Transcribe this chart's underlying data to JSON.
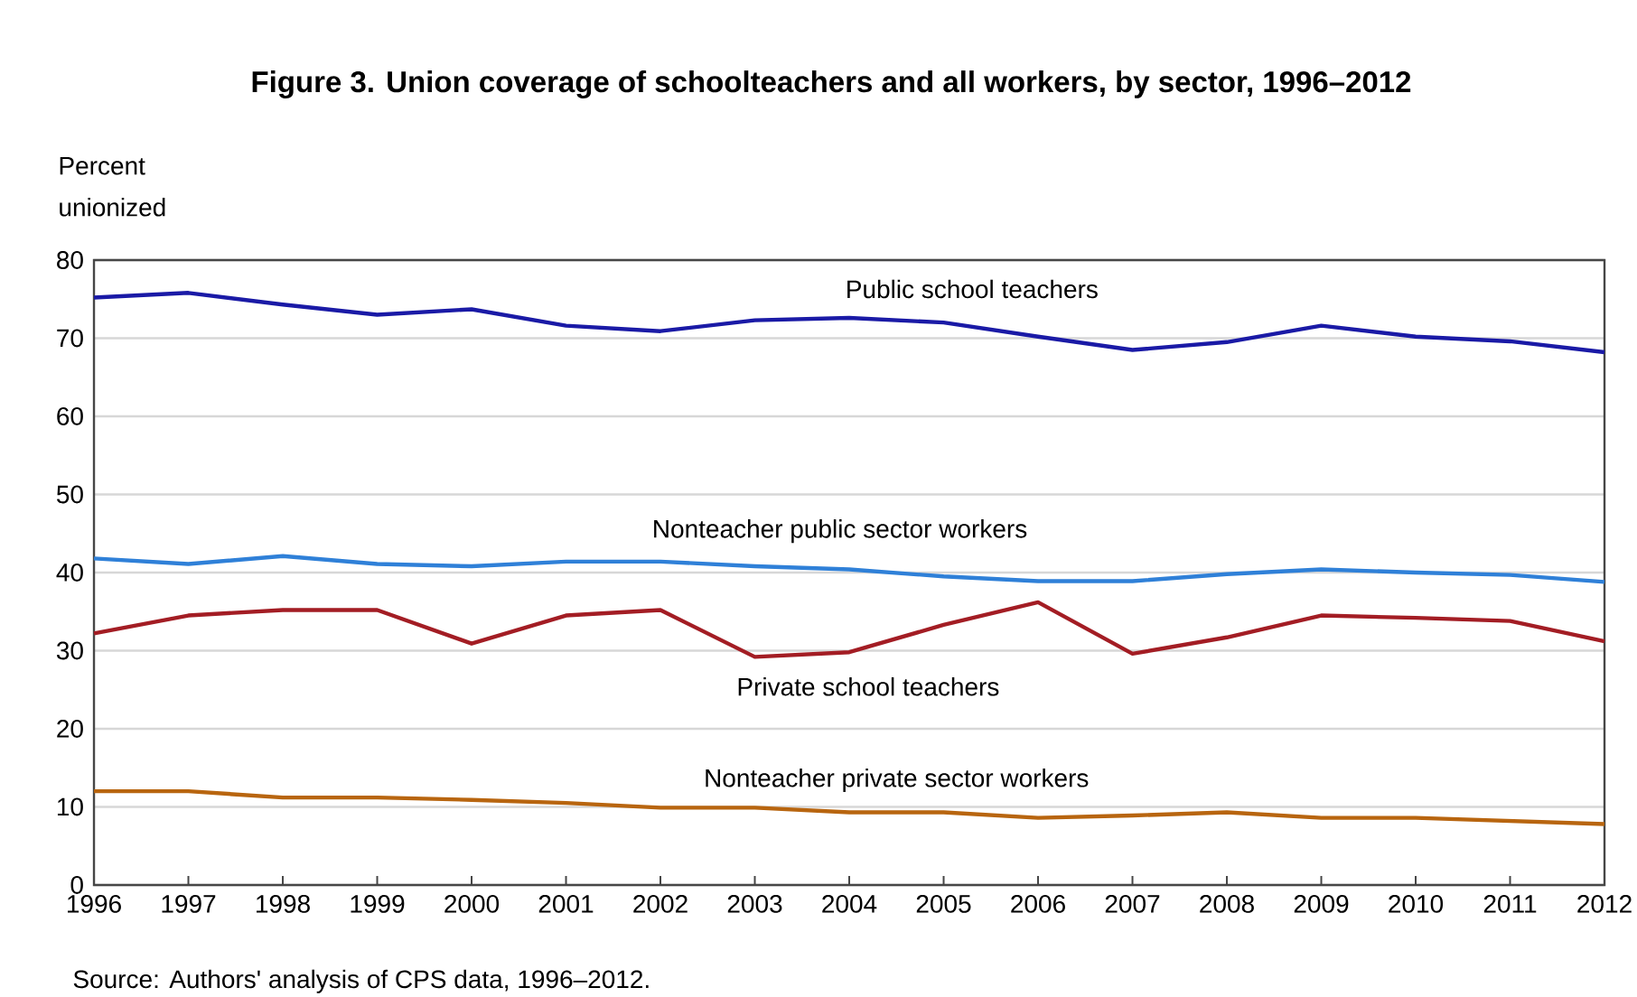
{
  "chart_data": {
    "type": "line",
    "title": "Figure 3. Union coverage of schoolteachers and all workers, by sector, 1996–2012",
    "ylabel": "Percent unionized",
    "x": [
      1996,
      1997,
      1998,
      1999,
      2000,
      2001,
      2002,
      2003,
      2004,
      2005,
      2006,
      2007,
      2008,
      2009,
      2010,
      2011,
      2012
    ],
    "series": [
      {
        "name": "Public school teachers",
        "color": "#1a1aa6",
        "values": [
          75.2,
          75.8,
          74.3,
          73,
          73.7,
          71.6,
          70.9,
          72.3,
          72.6,
          72,
          70.2,
          68.5,
          69.5,
          71.6,
          70.2,
          69.6,
          68.2
        ]
      },
      {
        "name": "Nonteacher public sector workers",
        "color": "#2f80d8",
        "values": [
          41.8,
          41.1,
          42.1,
          41.1,
          40.8,
          41.4,
          41.4,
          40.8,
          40.4,
          39.5,
          38.9,
          38.9,
          39.8,
          40.4,
          40,
          39.7,
          38.8
        ]
      },
      {
        "name": "Private school teachers",
        "color": "#a31d24",
        "values": [
          32.2,
          34.5,
          35.2,
          35.2,
          30.9,
          34.5,
          35.2,
          29.2,
          29.8,
          33.3,
          36.2,
          29.6,
          31.7,
          34.5,
          34.2,
          33.8,
          31.2
        ]
      },
      {
        "name": "Nonteacher private sector workers",
        "color": "#b8650f",
        "values": [
          12,
          12,
          11.2,
          11.2,
          10.9,
          10.5,
          9.9,
          9.9,
          9.3,
          9.3,
          8.6,
          8.9,
          9.3,
          8.6,
          8.6,
          8.2,
          7.8
        ]
      }
    ],
    "xlim": [
      1996,
      2012
    ],
    "ylim": [
      0,
      80
    ],
    "xticks": [
      1996,
      1997,
      1998,
      1999,
      2000,
      2001,
      2002,
      2003,
      2004,
      2005,
      2006,
      2007,
      2008,
      2009,
      2010,
      2011,
      2012
    ],
    "yticks": [
      0,
      10,
      20,
      30,
      40,
      50,
      60,
      70,
      80
    ],
    "grid": "y",
    "legend": false,
    "marker": "none",
    "line_style": "solid",
    "annotations": [
      "Source: Authors' analysis of CPS data, 1996–2012."
    ]
  }
}
